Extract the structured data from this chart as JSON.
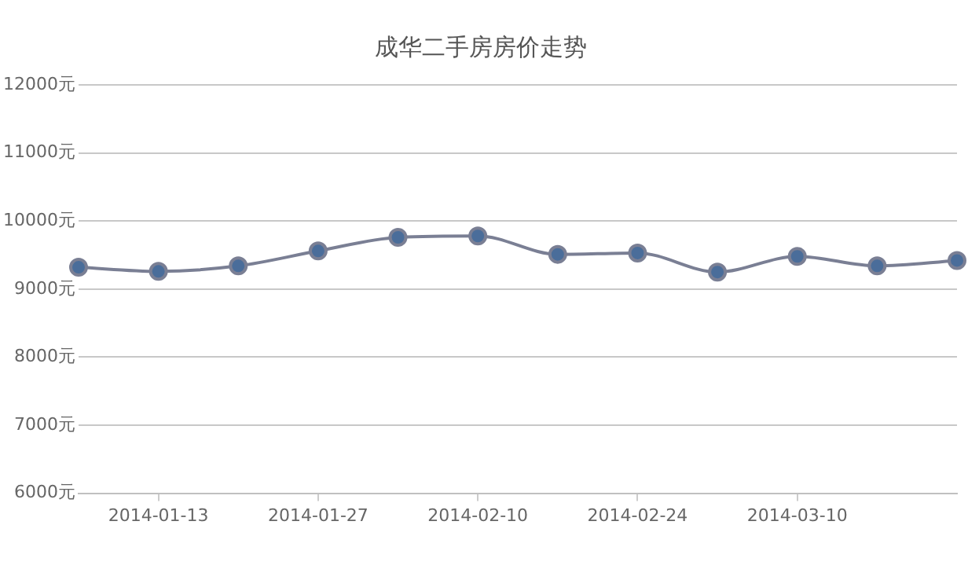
{
  "chart_data": {
    "type": "line",
    "title": "成华二手房房价走势",
    "categories": [
      null,
      "2014-01-13",
      null,
      "2014-01-27",
      null,
      "2014-02-10",
      null,
      "2014-02-24",
      null,
      "2014-03-10",
      null,
      null
    ],
    "series": [
      {
        "color": "#4a6d9a",
        "values": [
          9320,
          9260,
          9340,
          9560,
          9760,
          9780,
          9510,
          9530,
          9250,
          9480,
          9340,
          9420
        ]
      }
    ],
    "ylim": [
      6000,
      12000
    ],
    "yticks": [
      {
        "value": 6000,
        "label": "6000元"
      },
      {
        "value": 7000,
        "label": "7000元"
      },
      {
        "value": 8000,
        "label": "8000元"
      },
      {
        "value": 9000,
        "label": "9000元"
      },
      {
        "value": 10000,
        "label": "10000元"
      },
      {
        "value": 11000,
        "label": "11000元"
      },
      {
        "value": 12000,
        "label": "12000元"
      }
    ],
    "grid": "y",
    "legend": false,
    "marker": "circle",
    "line_style": "solid"
  }
}
